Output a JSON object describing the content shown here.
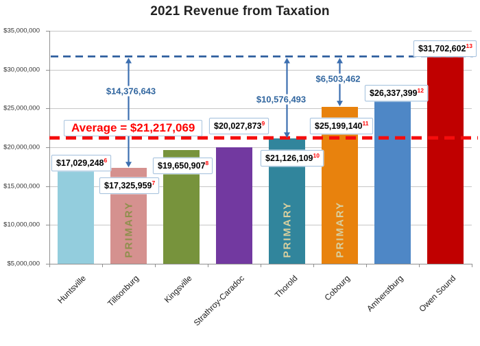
{
  "title": "2021 Revenue from Taxation",
  "colors": {
    "grid": "#c6c6c6",
    "axis": "#8f8f8f",
    "callout_border": "#a9c4de",
    "average_text": "#ff0000",
    "average_line": "#f50d0d",
    "max_line": "#2e5e9e",
    "diff_text": "#31669f",
    "arrow": "#3c6fb0",
    "footnote_ref": "#ff0000"
  },
  "chart_data": {
    "type": "bar",
    "title": "2021 Revenue from Taxation",
    "categories": [
      "Huntsville",
      "Tillsonburg",
      "Kingsville",
      "Strathroy-Caradoc",
      "Thorold",
      "Cobourg",
      "Amherstburg",
      "Owen Sound"
    ],
    "values": [
      17029248,
      17325959,
      19650907,
      20027873,
      21126109,
      25199140,
      26337399,
      31702602
    ],
    "value_labels": [
      "$17,029,248",
      "$17,325,959",
      "$19,650,907",
      "$20,027,873",
      "$21,126,109",
      "$25,199,140",
      "$26,337,399",
      "$31,702,602"
    ],
    "footnote_refs": [
      "6",
      "7",
      "8",
      "9",
      "10",
      "11",
      "12",
      "13"
    ],
    "bar_colors": [
      "#93cddd",
      "#d5918f",
      "#77933c",
      "#7239a0",
      "#31859c",
      "#e8820d",
      "#4e87c6",
      "#c00000"
    ],
    "primary_overlays": [
      {
        "index": 1,
        "text": "PRIMARY",
        "color": "#8f8f4d"
      },
      {
        "index": 4,
        "text": "PRIMARY",
        "color": "#d8cf9f"
      },
      {
        "index": 5,
        "text": "PRIMARY",
        "color": "#d8cf9f"
      }
    ],
    "average_line": {
      "value": 21217069,
      "label": "Average = $21,217,069"
    },
    "max_line": {
      "value": 31702602
    },
    "difference_arrows": [
      {
        "label": "$14,376,643",
        "to_index": 1
      },
      {
        "label": "$10,576,493",
        "to_index": 4
      },
      {
        "label": "$6,503,462",
        "to_index": 5
      }
    ],
    "y_axis": {
      "min": 5000000,
      "max": 35000000,
      "tick_step": 5000000,
      "tick_labels": [
        "$5,000,000",
        "$10,000,000",
        "$15,000,000",
        "$20,000,000",
        "$25,000,000",
        "$30,000,000",
        "$35,000,000"
      ]
    },
    "grid": true,
    "legend": "none"
  }
}
